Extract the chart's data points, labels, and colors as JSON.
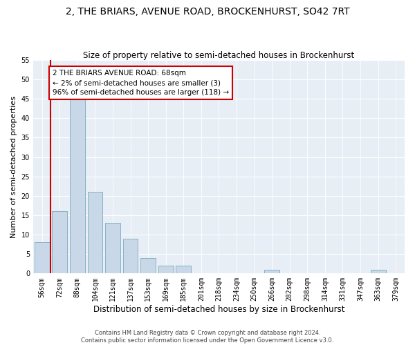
{
  "title": "2, THE BRIARS, AVENUE ROAD, BROCKENHURST, SO42 7RT",
  "subtitle": "Size of property relative to semi-detached houses in Brockenhurst",
  "xlabel": "Distribution of semi-detached houses by size in Brockenhurst",
  "ylabel": "Number of semi-detached properties",
  "categories": [
    "56sqm",
    "72sqm",
    "88sqm",
    "104sqm",
    "121sqm",
    "137sqm",
    "153sqm",
    "169sqm",
    "185sqm",
    "201sqm",
    "218sqm",
    "234sqm",
    "250sqm",
    "266sqm",
    "282sqm",
    "298sqm",
    "314sqm",
    "331sqm",
    "347sqm",
    "363sqm",
    "379sqm"
  ],
  "values": [
    8,
    16,
    46,
    21,
    13,
    9,
    4,
    2,
    2,
    0,
    0,
    0,
    0,
    1,
    0,
    0,
    0,
    0,
    0,
    1,
    0
  ],
  "bar_color": "#c8d8e8",
  "bar_edge_color": "#7aaabb",
  "highlight_color": "#cc0000",
  "annotation_text": "2 THE BRIARS AVENUE ROAD: 68sqm\n← 2% of semi-detached houses are smaller (3)\n96% of semi-detached houses are larger (118) →",
  "annotation_box_color": "#cc0000",
  "ylim": [
    0,
    55
  ],
  "yticks": [
    0,
    5,
    10,
    15,
    20,
    25,
    30,
    35,
    40,
    45,
    50,
    55
  ],
  "background_color": "#e8eef5",
  "footer": "Contains HM Land Registry data © Crown copyright and database right 2024.\nContains public sector information licensed under the Open Government Licence v3.0.",
  "title_fontsize": 10,
  "subtitle_fontsize": 8.5,
  "xlabel_fontsize": 8.5,
  "ylabel_fontsize": 8,
  "tick_fontsize": 7,
  "annotation_fontsize": 7.5,
  "footer_fontsize": 6
}
